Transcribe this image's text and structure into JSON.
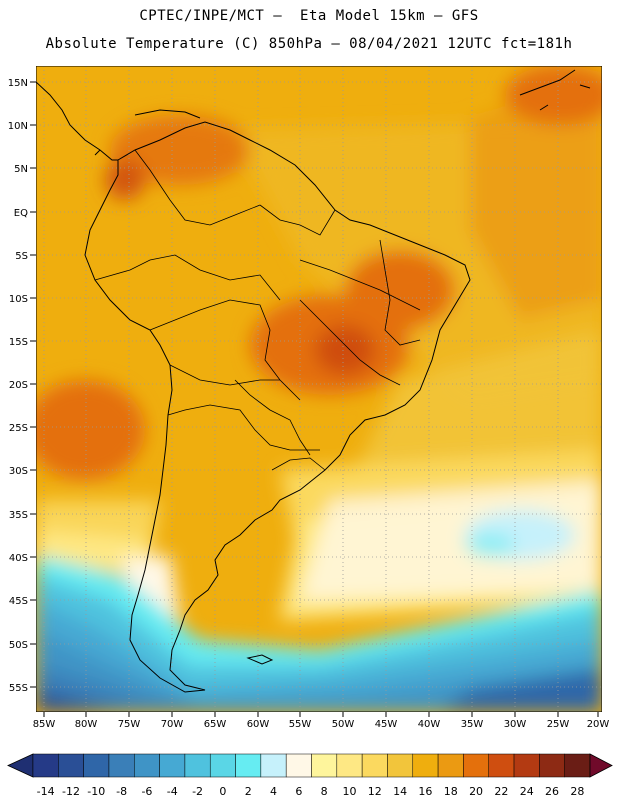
{
  "header": {
    "line1": "CPTEC/INPE/MCT –  Eta Model 15km – GFS",
    "line2": "Absolute Temperature (C) 850hPa – 08/04/2021 12UTC fct=181h"
  },
  "map": {
    "lat_ticks": [
      "15N",
      "10N",
      "5N",
      "EQ",
      "5S",
      "10S",
      "15S",
      "20S",
      "25S",
      "30S",
      "35S",
      "40S",
      "45S",
      "50S",
      "55S"
    ],
    "lon_ticks": [
      "85W",
      "80W",
      "75W",
      "70W",
      "65W",
      "60W",
      "55W",
      "50W",
      "45W",
      "40W",
      "35W",
      "30W",
      "25W",
      "20W"
    ],
    "field": "Absolute Temperature 850hPa",
    "units": "C"
  },
  "colorbar": {
    "labels": [
      "-14",
      "-12",
      "-10",
      "-8",
      "-6",
      "-4",
      "-2",
      "0",
      "2",
      "4",
      "6",
      "8",
      "10",
      "12",
      "14",
      "16",
      "18",
      "20",
      "22",
      "24",
      "26",
      "28"
    ],
    "colors": [
      "#253a87",
      "#2a4f96",
      "#2f66a8",
      "#3a7fb8",
      "#3f94c6",
      "#46a9d3",
      "#4fc2de",
      "#5ad6e6",
      "#66ecf2",
      "#c6f1fb",
      "#fff8e7",
      "#fef59c",
      "#fee884",
      "#fbd95f",
      "#f2c53b",
      "#efae0e",
      "#eb9a12",
      "#e4700c",
      "#cf4e10",
      "#b33a12",
      "#8d2a14",
      "#6a1d15"
    ],
    "under_color": "#1f2f72",
    "over_color": "#700a2a"
  }
}
